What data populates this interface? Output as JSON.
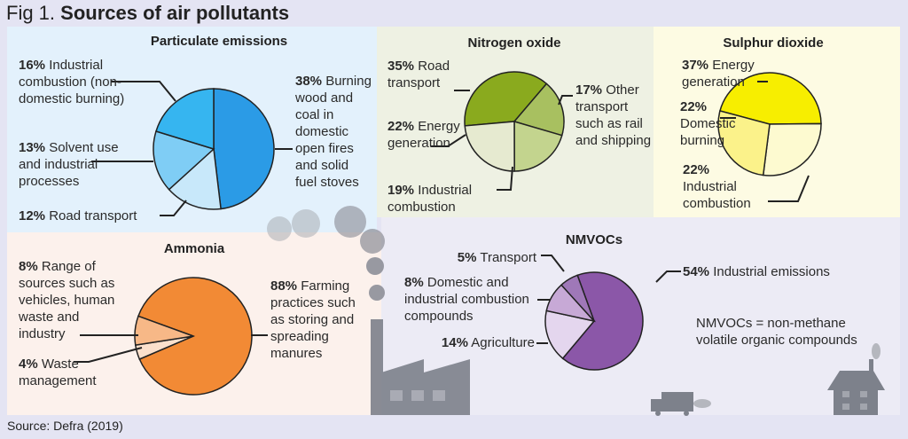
{
  "figure_title_prefix": "Fig 1.",
  "figure_title": "Sources of air pollutants",
  "source": "Source: Defra (2019)",
  "chart_data": [
    {
      "type": "pie",
      "title": "Particulate emissions",
      "slices": [
        {
          "pct": "38%",
          "label": "Burning wood and coal in domestic open fires and solid fuel stoves",
          "value": 38,
          "color": "#2b9be6"
        },
        {
          "pct": "12%",
          "label": "Road transport",
          "value": 12,
          "color": "#c8e8fa"
        },
        {
          "pct": "13%",
          "label": "Solvent use and industrial processes",
          "value": 13,
          "color": "#7fcdf5"
        },
        {
          "pct": "16%",
          "label": "Industrial combustion (non-domestic burning)",
          "value": 16,
          "color": "#36b5f0"
        }
      ]
    },
    {
      "type": "pie",
      "title": "Nitrogen oxide",
      "slices": [
        {
          "pct": "35%",
          "label": "Road transport",
          "value": 35,
          "color": "#8aaa1e"
        },
        {
          "pct": "17%",
          "label": "Other transport such as rail and shipping",
          "value": 17,
          "color": "#a8c060"
        },
        {
          "pct": "19%",
          "label": "Industrial combustion",
          "value": 19,
          "color": "#c3d48e"
        },
        {
          "pct": "22%",
          "label": "Energy generation",
          "value": 22,
          "color": "#e6ead0"
        }
      ]
    },
    {
      "type": "pie",
      "title": "Sulphur dioxide",
      "slices": [
        {
          "pct": "37%",
          "label": "Energy generation",
          "value": 37,
          "color": "#f7ee00"
        },
        {
          "pct": "22%",
          "label": "Industrial combustion",
          "value": 22,
          "color": "#fdfad0"
        },
        {
          "pct": "22%",
          "label": "Domestic burning",
          "value": 22,
          "color": "#fbf28a"
        }
      ]
    },
    {
      "type": "pie",
      "title": "Ammonia",
      "slices": [
        {
          "pct": "88%",
          "label": "Farming practices such as storing and spreading manures",
          "value": 88,
          "color": "#f28a35"
        },
        {
          "pct": "4%",
          "label": "Waste management",
          "value": 4,
          "color": "#fbe0cc"
        },
        {
          "pct": "8%",
          "label": "Range of sources such as vehicles, human waste and industry",
          "value": 8,
          "color": "#f7b887"
        }
      ]
    },
    {
      "type": "pie",
      "title": "NMVOCs",
      "slices": [
        {
          "pct": "54%",
          "label": "Industrial emissions",
          "value": 54,
          "color": "#8b57a8"
        },
        {
          "pct": "14%",
          "label": "Agriculture",
          "value": 14,
          "color": "#e4d6ee"
        },
        {
          "pct": "8%",
          "label": "Domestic and industrial combustion compounds",
          "value": 8,
          "color": "#c7a9d6"
        },
        {
          "pct": "5%",
          "label": "Transport",
          "value": 5,
          "color": "#9f78b8"
        }
      ],
      "note": "NMVOCs = non-methane volatile organic compounds"
    }
  ]
}
